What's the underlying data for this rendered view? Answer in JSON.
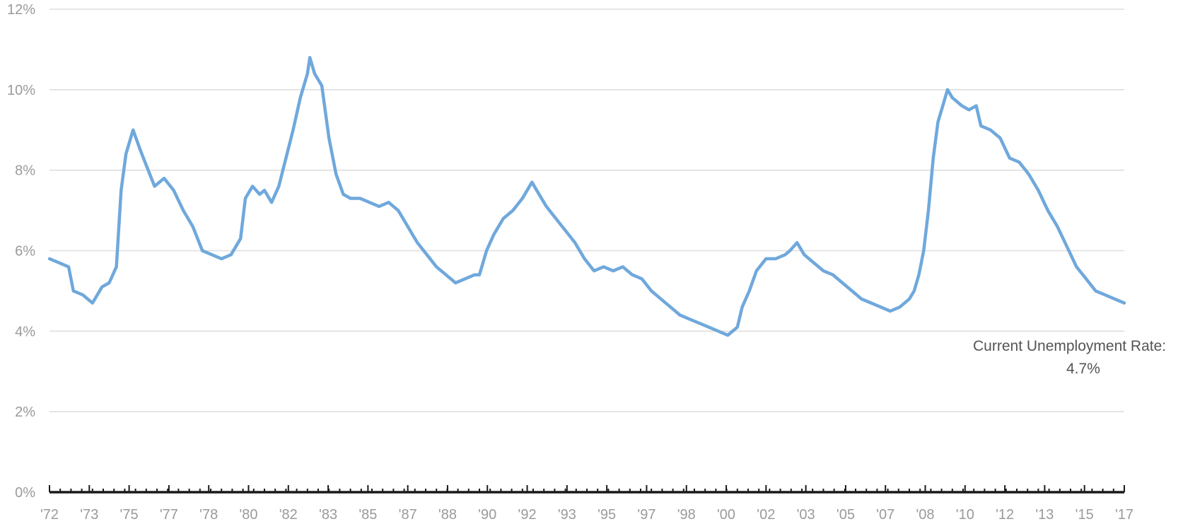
{
  "chart_data": {
    "type": "line",
    "title": "",
    "xlabel": "",
    "ylabel": "",
    "xlim": [
      1972.0,
      2017.0
    ],
    "ylim": [
      0,
      12
    ],
    "y_ticks": [
      0,
      2,
      4,
      6,
      8,
      10,
      12
    ],
    "y_tick_labels": [
      "0%",
      "2%",
      "4%",
      "6%",
      "8%",
      "10%",
      "12%"
    ],
    "x_tick_labels": [
      "'72",
      "'73",
      "'75",
      "'77",
      "'78",
      "'80",
      "'82",
      "'83",
      "'85",
      "'87",
      "'88",
      "'90",
      "'92",
      "'93",
      "'95",
      "'97",
      "'98",
      "'00",
      "'02",
      "'03",
      "'05",
      "'07",
      "'08",
      "'10",
      "'12",
      "'13",
      "'15",
      "'17"
    ],
    "grid": true,
    "legend": "none",
    "colors": {
      "line": "#6fa8dc",
      "grid": "#dedede",
      "axis": "#1a1a1a"
    },
    "series": [
      {
        "x": [
          1972.0,
          1972.4,
          1972.8,
          1973.0,
          1973.4,
          1973.8,
          1974.2,
          1974.5,
          1974.8,
          1975.0,
          1975.2,
          1975.5,
          1975.8,
          1976.0,
          1976.4,
          1976.8,
          1977.2,
          1977.6,
          1978.0,
          1978.4,
          1978.8,
          1979.2,
          1979.6,
          1980.0,
          1980.2,
          1980.5,
          1980.8,
          1981.0,
          1981.3,
          1981.6,
          1981.9,
          1982.2,
          1982.5,
          1982.8,
          1982.9,
          1983.1,
          1983.4,
          1983.7,
          1984.0,
          1984.3,
          1984.6,
          1985.0,
          1985.4,
          1985.8,
          1986.2,
          1986.6,
          1987.0,
          1987.4,
          1987.8,
          1988.2,
          1988.6,
          1989.0,
          1989.4,
          1989.8,
          1990.0,
          1990.3,
          1990.6,
          1991.0,
          1991.4,
          1991.8,
          1992.2,
          1992.5,
          1992.8,
          1993.2,
          1993.6,
          1994.0,
          1994.4,
          1994.8,
          1995.2,
          1995.6,
          1996.0,
          1996.4,
          1996.8,
          1997.2,
          1997.6,
          1998.0,
          1998.4,
          1998.8,
          1999.2,
          1999.6,
          2000.0,
          2000.4,
          2000.8,
          2001.0,
          2001.3,
          2001.6,
          2002.0,
          2002.4,
          2002.8,
          2003.0,
          2003.3,
          2003.6,
          2004.0,
          2004.4,
          2004.8,
          2005.2,
          2005.6,
          2006.0,
          2006.4,
          2006.8,
          2007.2,
          2007.6,
          2008.0,
          2008.2,
          2008.4,
          2008.6,
          2008.8,
          2009.0,
          2009.2,
          2009.4,
          2009.6,
          2009.8,
          2010.0,
          2010.2,
          2010.5,
          2010.8,
          2011.0,
          2011.4,
          2011.8,
          2012.2,
          2012.6,
          2013.0,
          2013.4,
          2013.8,
          2014.2,
          2014.6,
          2015.0,
          2015.4,
          2015.8,
          2016.2,
          2016.6,
          2017.0
        ],
        "values": [
          5.8,
          5.7,
          5.6,
          5.0,
          4.9,
          4.7,
          5.1,
          5.2,
          5.6,
          7.5,
          8.4,
          9.0,
          8.5,
          8.2,
          7.6,
          7.8,
          7.5,
          7.0,
          6.6,
          6.0,
          5.9,
          5.8,
          5.9,
          6.3,
          7.3,
          7.6,
          7.4,
          7.5,
          7.2,
          7.6,
          8.3,
          9.0,
          9.8,
          10.4,
          10.8,
          10.4,
          10.1,
          8.8,
          7.9,
          7.4,
          7.3,
          7.3,
          7.2,
          7.1,
          7.2,
          7.0,
          6.6,
          6.2,
          5.9,
          5.6,
          5.4,
          5.2,
          5.3,
          5.4,
          5.4,
          6.0,
          6.4,
          6.8,
          7.0,
          7.3,
          7.7,
          7.4,
          7.1,
          6.8,
          6.5,
          6.2,
          5.8,
          5.5,
          5.6,
          5.5,
          5.6,
          5.4,
          5.3,
          5.0,
          4.8,
          4.6,
          4.4,
          4.3,
          4.2,
          4.1,
          4.0,
          3.9,
          4.1,
          4.6,
          5.0,
          5.5,
          5.8,
          5.8,
          5.9,
          6.0,
          6.2,
          5.9,
          5.7,
          5.5,
          5.4,
          5.2,
          5.0,
          4.8,
          4.7,
          4.6,
          4.5,
          4.6,
          4.8,
          5.0,
          5.4,
          6.0,
          7.0,
          8.3,
          9.2,
          9.6,
          10.0,
          9.8,
          9.7,
          9.6,
          9.5,
          9.6,
          9.1,
          9.0,
          8.8,
          8.3,
          8.2,
          7.9,
          7.5,
          7.0,
          6.6,
          6.1,
          5.6,
          5.3,
          5.0,
          4.9,
          4.8,
          4.7
        ]
      }
    ],
    "annotation": {
      "line1": "Current Unemployment Rate:",
      "line2": "4.7%"
    }
  }
}
